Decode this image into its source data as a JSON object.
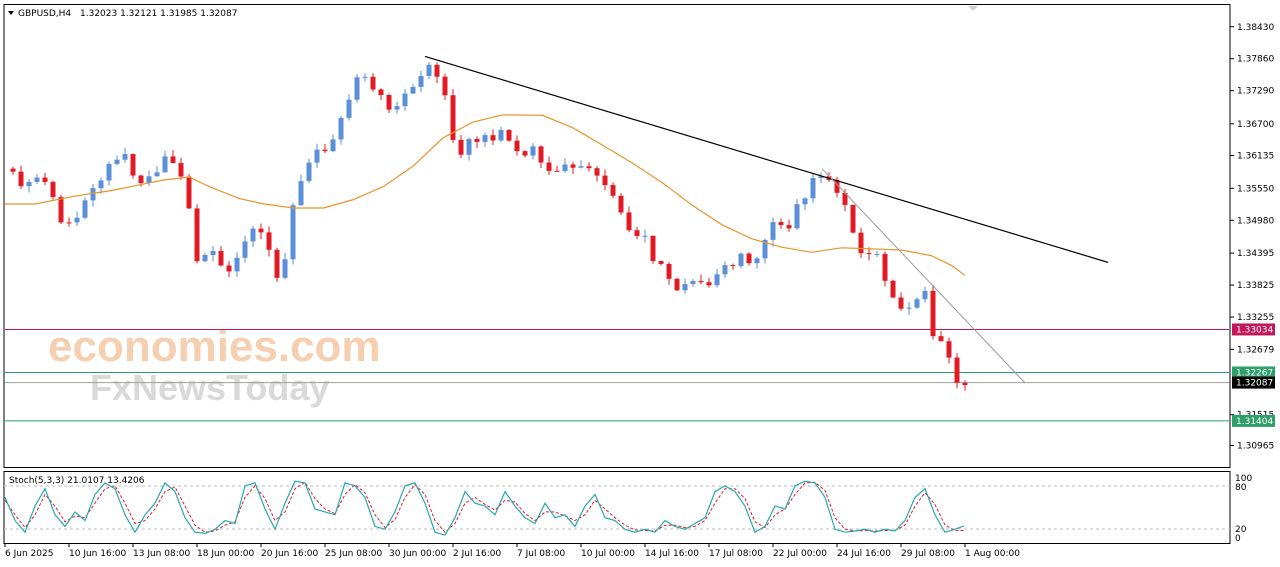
{
  "header": {
    "symbol": "GBPUSD,H4",
    "ohlc": "1.32023 1.32121 1.31985 1.32087"
  },
  "watermark": {
    "line1": "economies.com",
    "line2": "FxNewsToday"
  },
  "indicator": {
    "label": "Stoch(5,3,3) 21.0107 13.4206",
    "levels": [
      "100",
      "80",
      "20",
      "0"
    ]
  },
  "colors": {
    "bull": "#5b8fd6",
    "bear": "#e01b24",
    "ma": "#e8952c",
    "trendline": "#000000",
    "trendline_thin": "#9a9a9a",
    "stoch_main": "#27a9b0",
    "stoch_signal": "#e01b24",
    "resistance_line": "#c2185b",
    "support_line": "#2e9e6b"
  },
  "chart_data": {
    "type": "line",
    "title": "",
    "y_ticks": [
      "1.38430",
      "1.37860",
      "1.37290",
      "1.36700",
      "1.36135",
      "1.35550",
      "1.34980",
      "1.34395",
      "1.33825",
      "1.33255",
      "1.32679",
      "1.31515",
      "1.30965"
    ],
    "x_ticks": [
      "6 Jun 2025",
      "10 Jun 16:00",
      "13 Jun 08:00",
      "18 Jun 00:00",
      "20 Jun 16:00",
      "25 Jun 08:00",
      "30 Jun 00:00",
      "2 Jul 16:00",
      "7 Jul 08:00",
      "10 Jul 00:00",
      "14 Jul 16:00",
      "17 Jul 08:00",
      "22 Jul 00:00",
      "24 Jul 16:00",
      "29 Jul 08:00",
      "1 Aug 00:00"
    ],
    "ylim": [
      1.306,
      1.388
    ],
    "price_labels": [
      {
        "value": 1.33034,
        "text": "1.33034",
        "kind": "resistance"
      },
      {
        "value": 1.32267,
        "text": "1.32267",
        "kind": "support"
      },
      {
        "value": 1.32087,
        "text": "1.32087",
        "kind": "current"
      },
      {
        "value": 1.31404,
        "text": "1.31404",
        "kind": "support"
      }
    ],
    "close_path": [
      [
        0,
        1.359
      ],
      [
        20,
        1.356
      ],
      [
        35,
        1.358
      ],
      [
        45,
        1.3555
      ],
      [
        55,
        1.35
      ],
      [
        70,
        1.3495
      ],
      [
        85,
        1.354
      ],
      [
        100,
        1.3585
      ],
      [
        112,
        1.36
      ],
      [
        122,
        1.362
      ],
      [
        130,
        1.356
      ],
      [
        142,
        1.357
      ],
      [
        155,
        1.359
      ],
      [
        163,
        1.3615
      ],
      [
        172,
        1.359
      ],
      [
        182,
        1.3555
      ],
      [
        192,
        1.343
      ],
      [
        202,
        1.344
      ],
      [
        212,
        1.3445
      ],
      [
        222,
        1.3405
      ],
      [
        232,
        1.343
      ],
      [
        242,
        1.3455
      ],
      [
        252,
        1.349
      ],
      [
        262,
        1.347
      ],
      [
        270,
        1.341
      ],
      [
        278,
        1.3385
      ],
      [
        287,
        1.3505
      ],
      [
        297,
        1.356
      ],
      [
        306,
        1.3605
      ],
      [
        316,
        1.3625
      ],
      [
        326,
        1.3615
      ],
      [
        336,
        1.3675
      ],
      [
        346,
        1.372
      ],
      [
        356,
        1.376
      ],
      [
        366,
        1.374
      ],
      [
        376,
        1.3725
      ],
      [
        386,
        1.37
      ],
      [
        396,
        1.371
      ],
      [
        406,
        1.374
      ],
      [
        416,
        1.3745
      ],
      [
        426,
        1.3775
      ],
      [
        436,
        1.375
      ],
      [
        446,
        1.369
      ],
      [
        454,
        1.359
      ],
      [
        462,
        1.365
      ],
      [
        472,
        1.364
      ],
      [
        482,
        1.3655
      ],
      [
        492,
        1.3645
      ],
      [
        502,
        1.366
      ],
      [
        512,
        1.363
      ],
      [
        522,
        1.362
      ],
      [
        532,
        1.363
      ],
      [
        542,
        1.359
      ],
      [
        552,
        1.3585
      ],
      [
        562,
        1.36
      ],
      [
        572,
        1.359
      ],
      [
        582,
        1.3605
      ],
      [
        592,
        1.359
      ],
      [
        602,
        1.356
      ],
      [
        612,
        1.3545
      ],
      [
        622,
        1.349
      ],
      [
        632,
        1.348
      ],
      [
        642,
        1.347
      ],
      [
        652,
        1.342
      ],
      [
        662,
        1.343
      ],
      [
        670,
        1.3375
      ],
      [
        680,
        1.3385
      ],
      [
        690,
        1.339
      ],
      [
        700,
        1.339
      ],
      [
        710,
        1.338
      ],
      [
        720,
        1.341
      ],
      [
        730,
        1.342
      ],
      [
        740,
        1.344
      ],
      [
        748,
        1.3415
      ],
      [
        758,
        1.343
      ],
      [
        766,
        1.3475
      ],
      [
        776,
        1.35
      ],
      [
        786,
        1.3485
      ],
      [
        796,
        1.353
      ],
      [
        806,
        1.3545
      ],
      [
        816,
        1.3585
      ],
      [
        826,
        1.358
      ],
      [
        832,
        1.356
      ],
      [
        840,
        1.353
      ],
      [
        848,
        1.3505
      ],
      [
        856,
        1.3445
      ],
      [
        864,
        1.343
      ],
      [
        872,
        1.344
      ],
      [
        880,
        1.342
      ],
      [
        888,
        1.3365
      ],
      [
        896,
        1.335
      ],
      [
        904,
        1.3345
      ],
      [
        912,
        1.3355
      ],
      [
        920,
        1.336
      ],
      [
        926,
        1.338
      ],
      [
        932,
        1.329
      ],
      [
        938,
        1.329
      ],
      [
        944,
        1.3245
      ],
      [
        950,
        1.326
      ],
      [
        956,
        1.32
      ],
      [
        960,
        1.321
      ],
      [
        964,
        1.3208
      ]
    ],
    "ma_path": [
      [
        0,
        1.3527
      ],
      [
        30,
        1.3527
      ],
      [
        70,
        1.3541
      ],
      [
        110,
        1.3552
      ],
      [
        140,
        1.3563
      ],
      [
        160,
        1.357
      ],
      [
        185,
        1.3575
      ],
      [
        205,
        1.3558
      ],
      [
        235,
        1.3537
      ],
      [
        260,
        1.3527
      ],
      [
        290,
        1.352
      ],
      [
        320,
        1.352
      ],
      [
        350,
        1.3535
      ],
      [
        380,
        1.3558
      ],
      [
        410,
        1.3595
      ],
      [
        440,
        1.3645
      ],
      [
        470,
        1.3673
      ],
      [
        500,
        1.3686
      ],
      [
        540,
        1.3685
      ],
      [
        570,
        1.3663
      ],
      [
        600,
        1.3632
      ],
      [
        630,
        1.36
      ],
      [
        660,
        1.3565
      ],
      [
        690,
        1.3525
      ],
      [
        720,
        1.349
      ],
      [
        750,
        1.3465
      ],
      [
        780,
        1.345
      ],
      [
        810,
        1.3441
      ],
      [
        840,
        1.3449
      ],
      [
        870,
        1.3447
      ],
      [
        900,
        1.3445
      ],
      [
        930,
        1.3435
      ],
      [
        950,
        1.3418
      ],
      [
        964,
        1.34
      ]
    ],
    "trendlines": [
      {
        "from": [
          425,
          1.379
        ],
        "to": [
          1108,
          1.3423
        ],
        "style": "main"
      },
      {
        "from": [
          822,
          1.359
        ],
        "to": [
          1025,
          1.3208
        ],
        "style": "thin"
      }
    ],
    "stoch_main": [
      [
        5,
        70
      ],
      [
        15,
        30
      ],
      [
        25,
        10
      ],
      [
        35,
        55
      ],
      [
        45,
        85
      ],
      [
        55,
        40
      ],
      [
        65,
        20
      ],
      [
        75,
        45
      ],
      [
        85,
        30
      ],
      [
        95,
        75
      ],
      [
        105,
        95
      ],
      [
        115,
        85
      ],
      [
        125,
        40
      ],
      [
        135,
        10
      ],
      [
        145,
        40
      ],
      [
        155,
        60
      ],
      [
        165,
        95
      ],
      [
        175,
        80
      ],
      [
        185,
        35
      ],
      [
        195,
        10
      ],
      [
        205,
        8
      ],
      [
        215,
        15
      ],
      [
        225,
        30
      ],
      [
        235,
        25
      ],
      [
        245,
        90
      ],
      [
        255,
        95
      ],
      [
        265,
        50
      ],
      [
        275,
        15
      ],
      [
        285,
        60
      ],
      [
        295,
        98
      ],
      [
        305,
        95
      ],
      [
        315,
        50
      ],
      [
        325,
        45
      ],
      [
        335,
        40
      ],
      [
        345,
        95
      ],
      [
        355,
        90
      ],
      [
        365,
        70
      ],
      [
        375,
        20
      ],
      [
        385,
        15
      ],
      [
        395,
        45
      ],
      [
        405,
        90
      ],
      [
        415,
        95
      ],
      [
        425,
        60
      ],
      [
        435,
        10
      ],
      [
        445,
        5
      ],
      [
        455,
        35
      ],
      [
        465,
        80
      ],
      [
        475,
        60
      ],
      [
        485,
        55
      ],
      [
        495,
        40
      ],
      [
        505,
        80
      ],
      [
        515,
        55
      ],
      [
        525,
        35
      ],
      [
        535,
        25
      ],
      [
        545,
        60
      ],
      [
        555,
        35
      ],
      [
        565,
        40
      ],
      [
        575,
        20
      ],
      [
        585,
        55
      ],
      [
        595,
        75
      ],
      [
        605,
        35
      ],
      [
        615,
        30
      ],
      [
        625,
        15
      ],
      [
        635,
        10
      ],
      [
        645,
        15
      ],
      [
        655,
        10
      ],
      [
        665,
        30
      ],
      [
        675,
        20
      ],
      [
        685,
        15
      ],
      [
        695,
        25
      ],
      [
        705,
        35
      ],
      [
        715,
        80
      ],
      [
        725,
        90
      ],
      [
        735,
        80
      ],
      [
        745,
        55
      ],
      [
        755,
        10
      ],
      [
        765,
        20
      ],
      [
        775,
        55
      ],
      [
        785,
        50
      ],
      [
        795,
        90
      ],
      [
        805,
        98
      ],
      [
        815,
        95
      ],
      [
        825,
        70
      ],
      [
        835,
        15
      ],
      [
        845,
        10
      ],
      [
        855,
        12
      ],
      [
        865,
        15
      ],
      [
        875,
        10
      ],
      [
        885,
        15
      ],
      [
        895,
        12
      ],
      [
        905,
        30
      ],
      [
        915,
        70
      ],
      [
        925,
        85
      ],
      [
        935,
        40
      ],
      [
        945,
        10
      ],
      [
        955,
        15
      ],
      [
        964,
        21
      ]
    ],
    "stoch_signal": [
      [
        5,
        65
      ],
      [
        15,
        40
      ],
      [
        25,
        18
      ],
      [
        35,
        40
      ],
      [
        45,
        75
      ],
      [
        55,
        55
      ],
      [
        65,
        28
      ],
      [
        75,
        38
      ],
      [
        85,
        35
      ],
      [
        95,
        60
      ],
      [
        105,
        85
      ],
      [
        115,
        90
      ],
      [
        125,
        60
      ],
      [
        135,
        25
      ],
      [
        145,
        30
      ],
      [
        155,
        50
      ],
      [
        165,
        80
      ],
      [
        175,
        88
      ],
      [
        185,
        55
      ],
      [
        195,
        22
      ],
      [
        205,
        10
      ],
      [
        215,
        12
      ],
      [
        225,
        22
      ],
      [
        235,
        28
      ],
      [
        245,
        70
      ],
      [
        255,
        90
      ],
      [
        265,
        68
      ],
      [
        275,
        30
      ],
      [
        285,
        45
      ],
      [
        295,
        85
      ],
      [
        305,
        96
      ],
      [
        315,
        68
      ],
      [
        325,
        50
      ],
      [
        335,
        42
      ],
      [
        345,
        75
      ],
      [
        355,
        92
      ],
      [
        365,
        78
      ],
      [
        375,
        40
      ],
      [
        385,
        18
      ],
      [
        395,
        32
      ],
      [
        405,
        70
      ],
      [
        415,
        92
      ],
      [
        425,
        75
      ],
      [
        435,
        30
      ],
      [
        445,
        10
      ],
      [
        455,
        25
      ],
      [
        465,
        60
      ],
      [
        475,
        70
      ],
      [
        485,
        58
      ],
      [
        495,
        48
      ],
      [
        505,
        65
      ],
      [
        515,
        62
      ],
      [
        525,
        42
      ],
      [
        535,
        30
      ],
      [
        545,
        45
      ],
      [
        555,
        45
      ],
      [
        565,
        38
      ],
      [
        575,
        30
      ],
      [
        585,
        40
      ],
      [
        595,
        65
      ],
      [
        605,
        50
      ],
      [
        615,
        35
      ],
      [
        625,
        22
      ],
      [
        635,
        14
      ],
      [
        645,
        13
      ],
      [
        655,
        12
      ],
      [
        665,
        22
      ],
      [
        675,
        22
      ],
      [
        685,
        18
      ],
      [
        695,
        20
      ],
      [
        705,
        30
      ],
      [
        715,
        60
      ],
      [
        725,
        85
      ],
      [
        735,
        85
      ],
      [
        745,
        68
      ],
      [
        755,
        28
      ],
      [
        765,
        18
      ],
      [
        775,
        40
      ],
      [
        785,
        50
      ],
      [
        795,
        75
      ],
      [
        805,
        95
      ],
      [
        815,
        96
      ],
      [
        825,
        82
      ],
      [
        835,
        35
      ],
      [
        845,
        15
      ],
      [
        855,
        12
      ],
      [
        865,
        13
      ],
      [
        875,
        12
      ],
      [
        885,
        13
      ],
      [
        895,
        13
      ],
      [
        905,
        22
      ],
      [
        915,
        55
      ],
      [
        925,
        78
      ],
      [
        935,
        58
      ],
      [
        945,
        22
      ],
      [
        955,
        13
      ],
      [
        964,
        13
      ]
    ]
  }
}
